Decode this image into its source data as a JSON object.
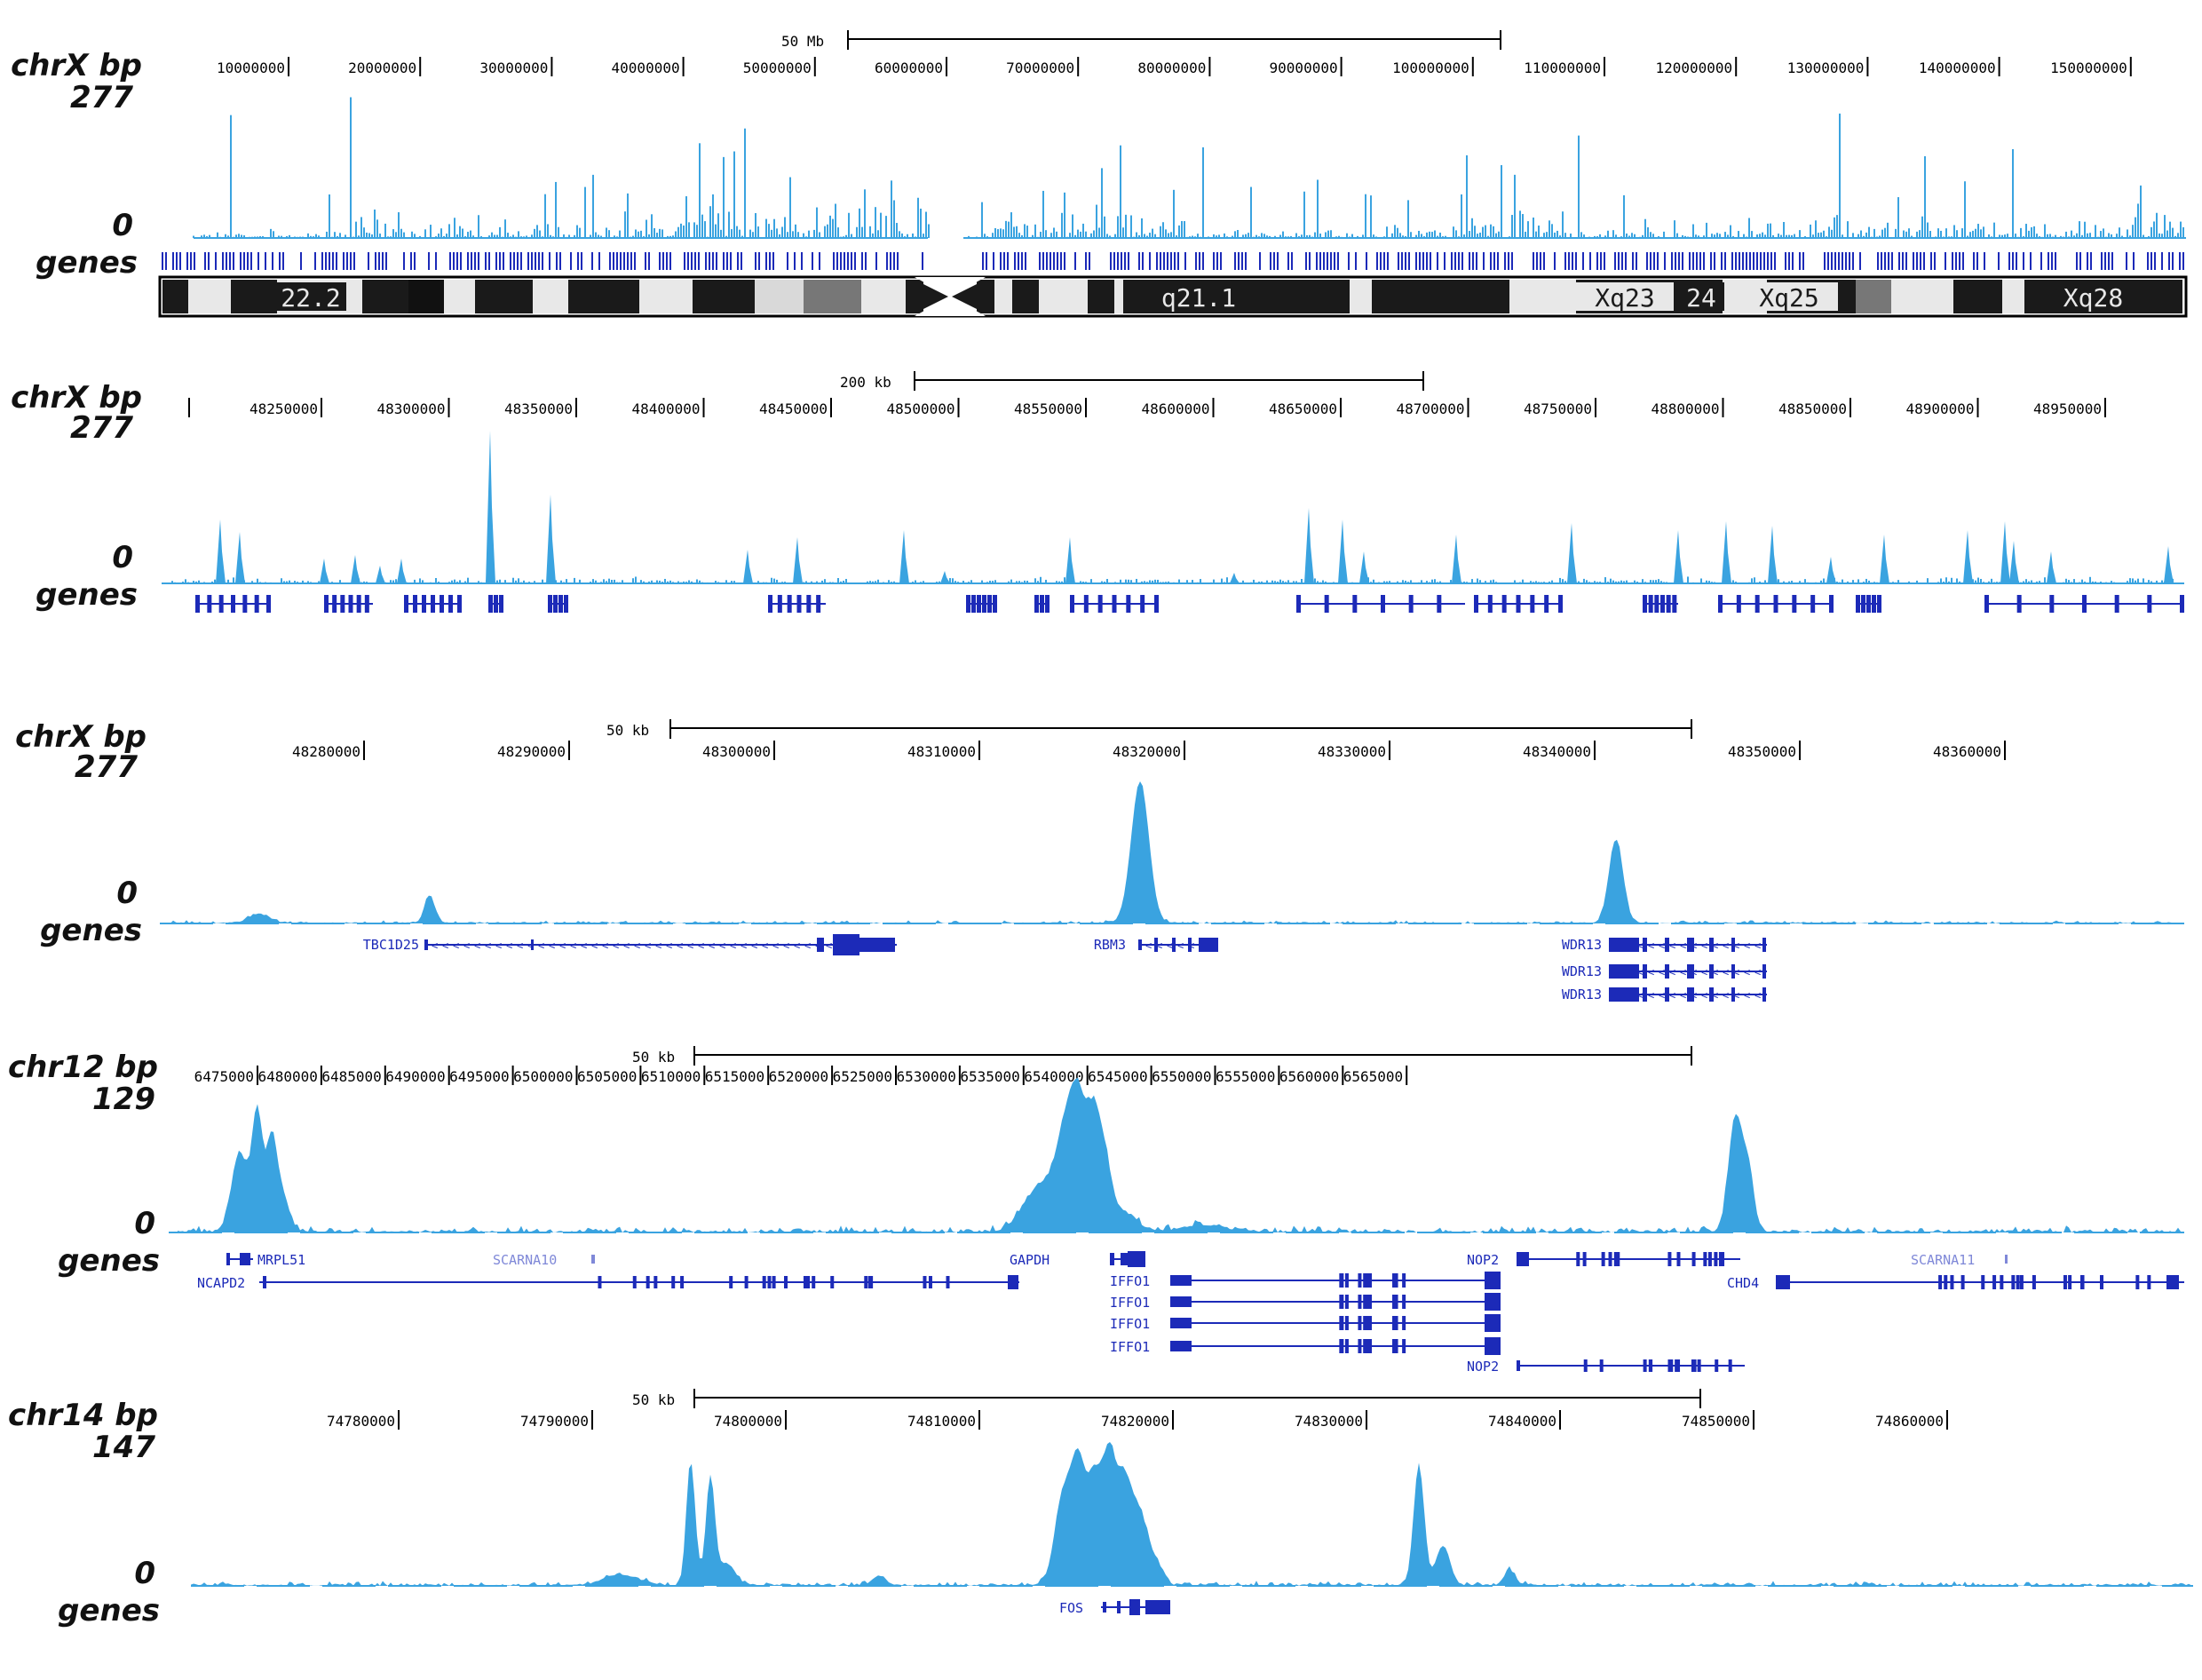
{
  "colors": {
    "signal": "#3aa3e0",
    "gene": "#1c2ab8",
    "gene_light": "#7f88d8",
    "band_dark": "#1a1a1a"
  },
  "panels": [
    {
      "chrom_label": "chrX bp",
      "max_label": "277",
      "zero_label": "0",
      "genes_label": "genes",
      "scale_label": "50 Mb",
      "ticks": [
        "10000000",
        "20000000",
        "30000000",
        "40000000",
        "50000000",
        "60000000",
        "70000000",
        "80000000",
        "90000000",
        "100000000",
        "110000000",
        "120000000",
        "130000000",
        "140000000",
        "150000000"
      ],
      "ideogram_bands": [
        "22.2",
        "q21.1",
        "Xq23",
        "24",
        "Xq25",
        "Xq28"
      ]
    },
    {
      "chrom_label": "chrX bp",
      "max_label": "277",
      "zero_label": "0",
      "genes_label": "genes",
      "scale_label": "200 kb",
      "ticks": [
        "48250000",
        "48300000",
        "48350000",
        "48400000",
        "48450000",
        "48500000",
        "48550000",
        "48600000",
        "48650000",
        "48700000",
        "48750000",
        "48800000",
        "48850000",
        "48900000",
        "48950000"
      ]
    },
    {
      "chrom_label": "chrX bp",
      "max_label": "277",
      "zero_label": "0",
      "genes_label": "genes",
      "scale_label": "50 kb",
      "ticks": [
        "48280000",
        "48290000",
        "48300000",
        "48310000",
        "48320000",
        "48330000",
        "48340000",
        "48350000",
        "48360000"
      ],
      "genes": [
        "TBC1D25",
        "RBM3",
        "WDR13",
        "WDR13",
        "WDR13"
      ]
    },
    {
      "chrom_label": "chr12 bp",
      "max_label": "129",
      "zero_label": "0",
      "genes_label": "genes",
      "scale_label": "50 kb",
      "ticks": [
        "6475000",
        "6480000",
        "6485000",
        "6490000",
        "6495000",
        "6500000",
        "6505000",
        "6510000",
        "6515000",
        "6520000",
        "6525000",
        "6530000",
        "6535000",
        "6540000",
        "6545000",
        "6550000",
        "6555000",
        "6560000",
        "6565000"
      ],
      "genes": [
        "MRPL51",
        "SCARNA10",
        "NCAPD2",
        "GAPDH",
        "IFFO1",
        "IFFO1",
        "IFFO1",
        "IFFO1",
        "NOP2",
        "NOP2",
        "SCARNA11",
        "CHD4"
      ]
    },
    {
      "chrom_label": "chr14 bp",
      "max_label": "147",
      "zero_label": "0",
      "genes_label": "genes",
      "scale_label": "50 kb",
      "ticks": [
        "74780000",
        "74790000",
        "74800000",
        "74810000",
        "74820000",
        "74830000",
        "74840000",
        "74850000",
        "74860000"
      ],
      "genes": [
        "FOS"
      ]
    }
  ]
}
